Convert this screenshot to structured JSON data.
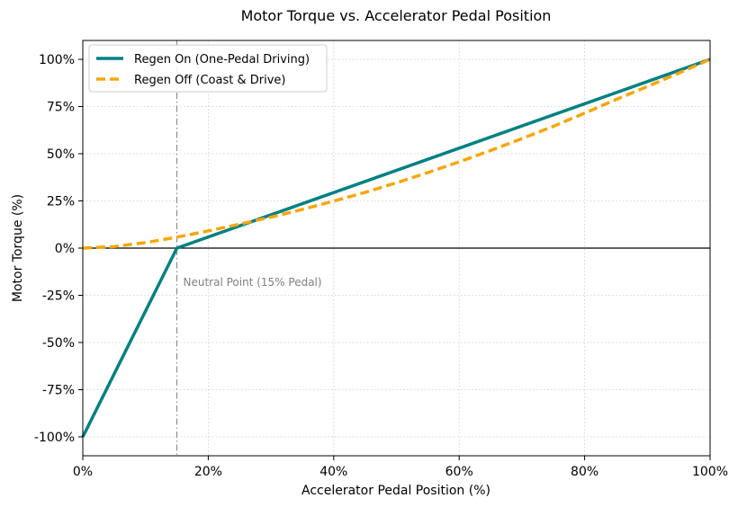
{
  "chart_data": {
    "type": "line",
    "title": "Motor Torque vs. Accelerator Pedal Position",
    "xlabel": "Accelerator Pedal Position (%)",
    "ylabel": "Motor Torque (%)",
    "xlim": [
      0,
      100
    ],
    "ylim": [
      -110,
      110
    ],
    "xticks": [
      0,
      20,
      40,
      60,
      80,
      100
    ],
    "xtick_labels": [
      "0%",
      "20%",
      "40%",
      "60%",
      "80%",
      "100%"
    ],
    "yticks": [
      -100,
      -75,
      -50,
      -25,
      0,
      25,
      50,
      75,
      100
    ],
    "ytick_labels": [
      "-100%",
      "-75%",
      "-50%",
      "-25%",
      "0%",
      "25%",
      "50%",
      "75%",
      "100%"
    ],
    "grid": true,
    "legend_position": "top-left",
    "series": [
      {
        "name": "Regen On (One-Pedal Driving)",
        "color": "#008080",
        "style": "solid",
        "x": [
          0,
          15,
          100
        ],
        "y": [
          -100,
          0,
          100
        ]
      },
      {
        "name": "Regen Off (Coast & Drive)",
        "color": "#f5a60a",
        "style": "dashed",
        "x": [
          0,
          5,
          10,
          15,
          20,
          25,
          30,
          35,
          40,
          45,
          50,
          55,
          60,
          65,
          70,
          75,
          80,
          85,
          90,
          95,
          100
        ],
        "y": [
          0,
          0.8,
          2.9,
          5.8,
          9.1,
          12.7,
          16.4,
          20.5,
          24.9,
          29.5,
          34.6,
          40.0,
          45.7,
          51.7,
          58.0,
          64.5,
          71.5,
          78.7,
          85.6,
          92.7,
          100
        ]
      }
    ],
    "reference_lines": [
      {
        "orientation": "vertical",
        "value": 15,
        "color": "#808080",
        "style": "dashdot"
      },
      {
        "orientation": "horizontal",
        "value": 0,
        "color": "#000000",
        "style": "solid"
      }
    ],
    "annotations": [
      {
        "text": "Neutral Point (15% Pedal)",
        "x": 16,
        "y": -18,
        "color": "#808080"
      }
    ]
  }
}
